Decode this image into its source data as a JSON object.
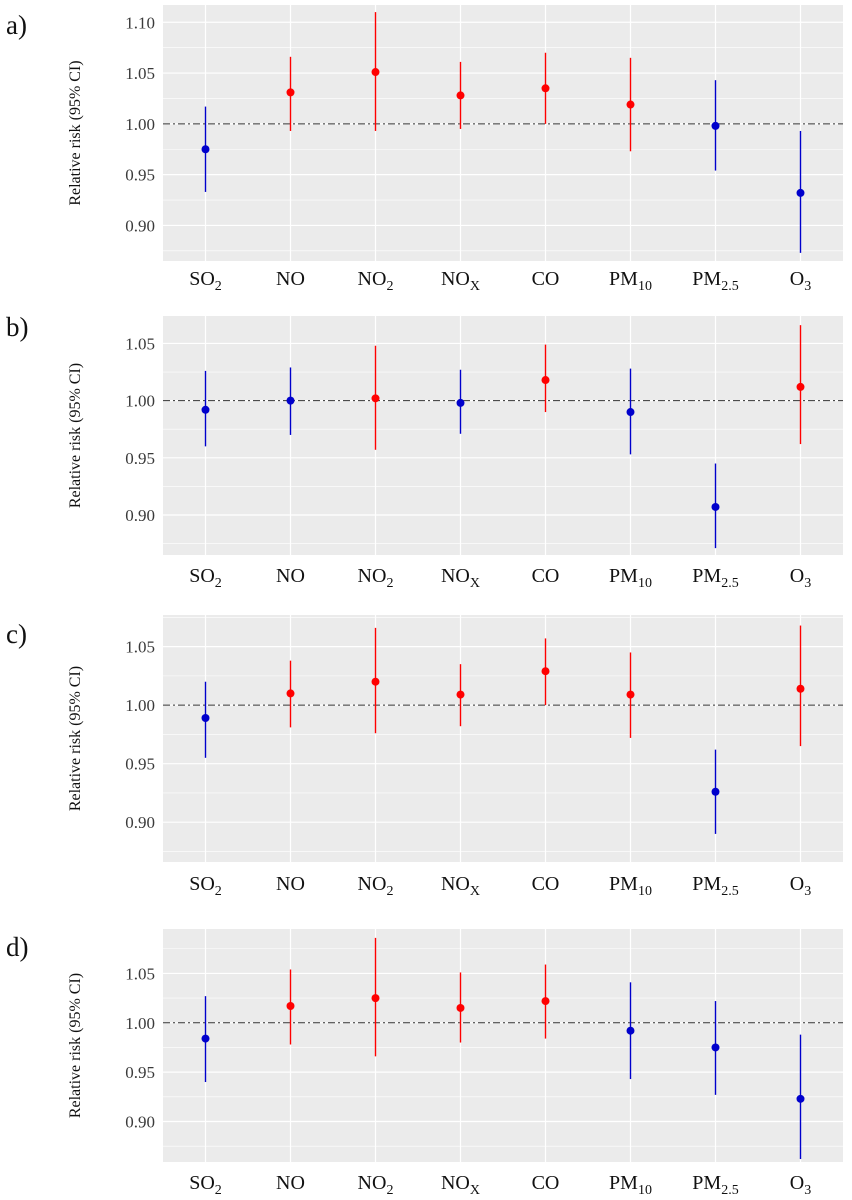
{
  "figure": {
    "shared_categories": [
      {
        "base": "SO",
        "sub": "2"
      },
      {
        "base": "NO",
        "sub": ""
      },
      {
        "base": "NO",
        "sub": "2"
      },
      {
        "base": "NO",
        "sub": "X"
      },
      {
        "base": "CO",
        "sub": ""
      },
      {
        "base": "PM",
        "sub": "10"
      },
      {
        "base": "PM",
        "sub": "2.5"
      },
      {
        "base": "O",
        "sub": "3"
      }
    ]
  },
  "colors": {
    "panel_background": "#ebebeb",
    "grid": "#ffffff",
    "positive": "#ff0000",
    "negative": "#0000cc",
    "reference_line": "#333333"
  },
  "chart_data": [
    {
      "type": "scatter",
      "panel_label": "a)",
      "ylabel": "Relative risk (95% CI)",
      "categories": [
        "SO2",
        "NO",
        "NO2",
        "NOX",
        "CO",
        "PM10",
        "PM2.5",
        "O3"
      ],
      "estimate": [
        0.975,
        1.031,
        1.051,
        1.028,
        1.035,
        1.019,
        0.998,
        0.932
      ],
      "ci_lower": [
        0.933,
        0.993,
        0.993,
        0.995,
        1.0,
        0.973,
        0.954,
        0.873
      ],
      "ci_upper": [
        1.017,
        1.066,
        1.11,
        1.061,
        1.07,
        1.065,
        1.043,
        0.993
      ],
      "color": [
        "negative",
        "positive",
        "positive",
        "positive",
        "positive",
        "positive",
        "negative",
        "negative"
      ],
      "reference_y": 1.0,
      "yticks": [
        "0.90",
        "0.95",
        "1.00",
        "1.05",
        "1.10"
      ],
      "ylim": [
        0.865,
        1.117
      ],
      "grid": true
    },
    {
      "type": "scatter",
      "panel_label": "b)",
      "ylabel": "Relative risk (95% CI)",
      "categories": [
        "SO2",
        "NO",
        "NO2",
        "NOX",
        "CO",
        "PM10",
        "PM2.5",
        "O3"
      ],
      "estimate": [
        0.992,
        1.0,
        1.002,
        0.998,
        1.018,
        0.99,
        0.907,
        1.012
      ],
      "ci_lower": [
        0.96,
        0.97,
        0.957,
        0.971,
        0.99,
        0.953,
        0.871,
        0.962
      ],
      "ci_upper": [
        1.026,
        1.029,
        1.048,
        1.027,
        1.049,
        1.028,
        0.945,
        1.066
      ],
      "color": [
        "negative",
        "negative",
        "positive",
        "negative",
        "positive",
        "negative",
        "negative",
        "positive"
      ],
      "reference_y": 1.0,
      "yticks": [
        "0.90",
        "0.95",
        "1.00",
        "1.05"
      ],
      "ylim": [
        0.865,
        1.074
      ],
      "grid": true
    },
    {
      "type": "scatter",
      "panel_label": "c)",
      "ylabel": "Relative risk (95% CI)",
      "categories": [
        "SO2",
        "NO",
        "NO2",
        "NOX",
        "CO",
        "PM10",
        "PM2.5",
        "O3"
      ],
      "estimate": [
        0.989,
        1.01,
        1.02,
        1.009,
        1.029,
        1.009,
        0.926,
        1.014
      ],
      "ci_lower": [
        0.955,
        0.981,
        0.976,
        0.982,
        1.0,
        0.972,
        0.89,
        0.965
      ],
      "ci_upper": [
        1.02,
        1.038,
        1.066,
        1.035,
        1.057,
        1.045,
        0.962,
        1.068
      ],
      "color": [
        "negative",
        "positive",
        "positive",
        "positive",
        "positive",
        "positive",
        "negative",
        "positive"
      ],
      "reference_y": 1.0,
      "yticks": [
        "0.90",
        "0.95",
        "1.00",
        "1.05"
      ],
      "ylim": [
        0.866,
        1.077
      ],
      "grid": true
    },
    {
      "type": "scatter",
      "panel_label": "d)",
      "ylabel": "Relative risk (95% CI)",
      "categories": [
        "SO2",
        "NO",
        "NO2",
        "NOX",
        "CO",
        "PM10",
        "PM2.5",
        "O3"
      ],
      "estimate": [
        0.984,
        1.017,
        1.025,
        1.015,
        1.022,
        0.992,
        0.975,
        0.923
      ],
      "ci_lower": [
        0.94,
        0.978,
        0.966,
        0.98,
        0.984,
        0.943,
        0.927,
        0.862
      ],
      "ci_upper": [
        1.027,
        1.054,
        1.086,
        1.051,
        1.059,
        1.041,
        1.022,
        0.988
      ],
      "color": [
        "negative",
        "positive",
        "positive",
        "positive",
        "positive",
        "negative",
        "negative",
        "negative"
      ],
      "reference_y": 1.0,
      "yticks": [
        "0.90",
        "0.95",
        "1.00",
        "1.05"
      ],
      "ylim": [
        0.859,
        1.095
      ],
      "grid": true
    }
  ]
}
